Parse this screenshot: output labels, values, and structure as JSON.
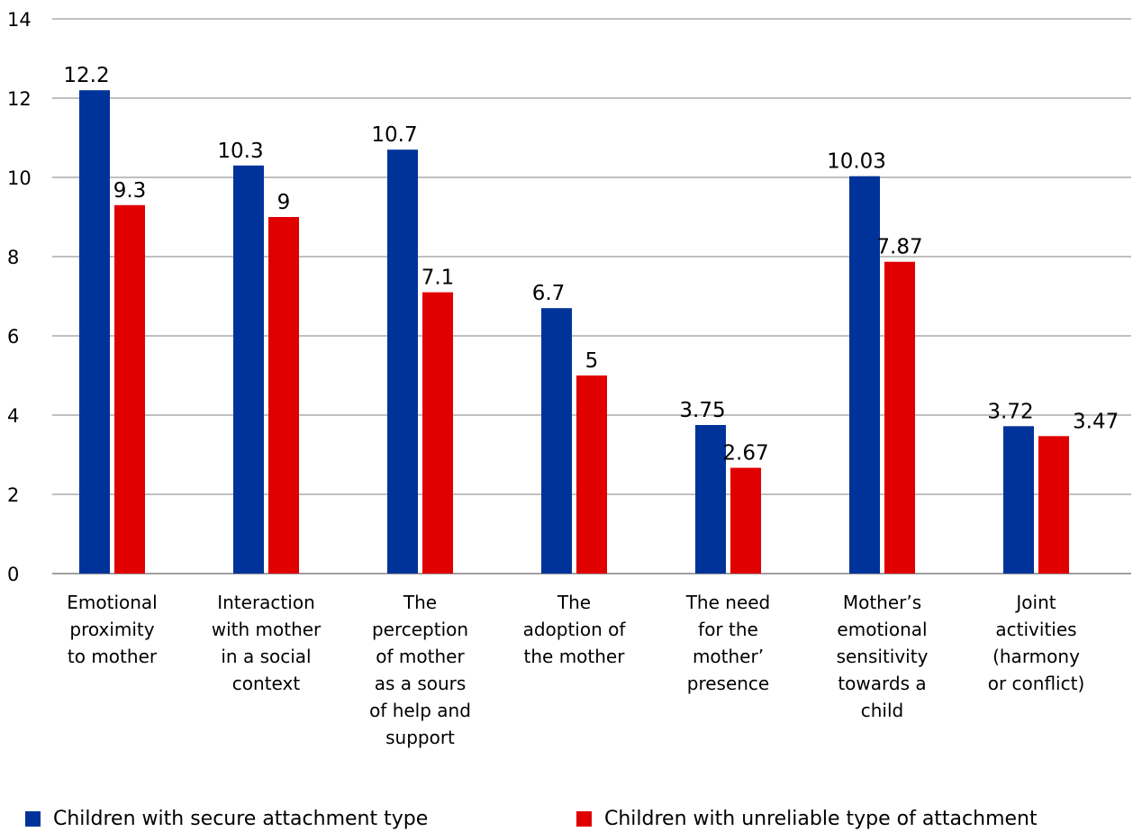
{
  "chart_data": {
    "type": "bar",
    "categories": [
      "Emotional\nproximity\nto mother",
      "Interaction\nwith mother\nin a social\ncontext",
      "The\nperception\nof mother\nas a sours\nof help and\nsupport",
      "The\nadoption of\nthe mother",
      "The need\nfor the\nmother’\npresence",
      "Mother’s\nemotional\nsensitivity\ntowards a\nchild",
      "Joint\nactivities\n(harmony\nor conflict)"
    ],
    "series": [
      {
        "name": "Children with secure attachment type",
        "color": "#003399",
        "values": [
          12.2,
          10.3,
          10.7,
          6.7,
          3.75,
          10.03,
          3.72
        ],
        "labels": [
          "12.2",
          "10.3",
          "10.7",
          "6.7",
          "3.75",
          "10.03",
          "3.72"
        ]
      },
      {
        "name": "Children with unreliable type of attachment",
        "color": "#e00000",
        "values": [
          9.3,
          9,
          7.1,
          5,
          2.67,
          7.87,
          3.47
        ],
        "labels": [
          "9.3",
          "9",
          "7.1",
          "5",
          "2.67",
          "7.87",
          "3.47"
        ]
      }
    ],
    "yticks": [
      "0",
      "2",
      "4",
      "6",
      "8",
      "10",
      "12",
      "14"
    ],
    "ylim": [
      0,
      14
    ],
    "grid": true,
    "legend_position": "bottom"
  }
}
